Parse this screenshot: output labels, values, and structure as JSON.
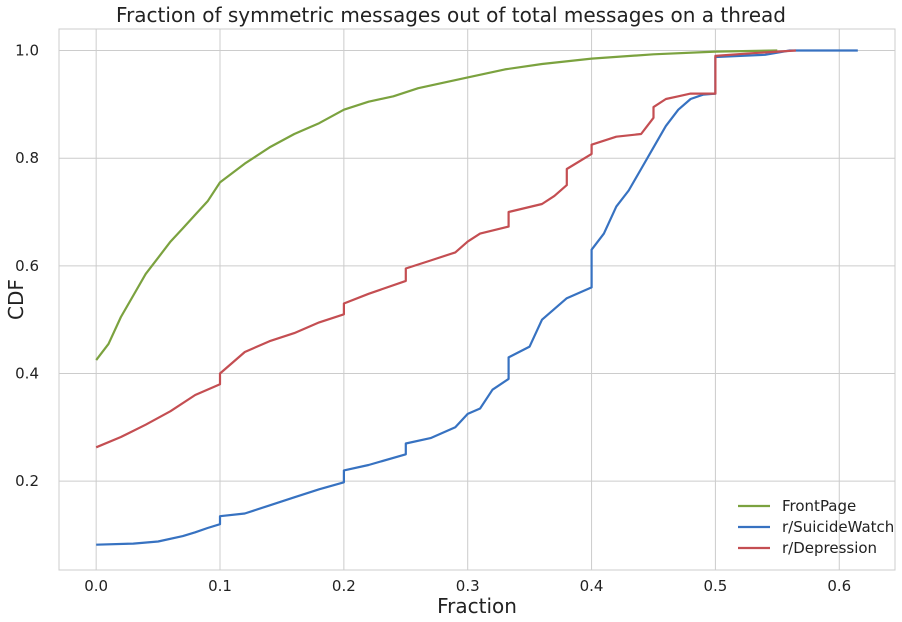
{
  "chart_data": {
    "type": "line",
    "title": "Fraction of symmetric messages out of total messages on a thread",
    "xlabel": "Fraction",
    "ylabel": "CDF",
    "xlim": [
      -0.03,
      0.645
    ],
    "ylim": [
      0.035,
      1.04
    ],
    "xticks": [
      0.0,
      0.1,
      0.2,
      0.3,
      0.4,
      0.5,
      0.6
    ],
    "xtick_labels": [
      "0.0",
      "0.1",
      "0.2",
      "0.3",
      "0.4",
      "0.5",
      "0.6"
    ],
    "yticks": [
      0.2,
      0.4,
      0.6,
      0.8,
      1.0
    ],
    "ytick_labels": [
      "0.2",
      "0.4",
      "0.6",
      "0.8",
      "1.0"
    ],
    "grid": true,
    "legend_position": "bottom-right",
    "series": [
      {
        "name": "FrontPage",
        "color": "#7ba23f",
        "x": [
          0.0,
          0.01,
          0.02,
          0.03,
          0.04,
          0.05,
          0.06,
          0.07,
          0.08,
          0.09,
          0.1,
          0.12,
          0.14,
          0.16,
          0.18,
          0.2,
          0.22,
          0.24,
          0.26,
          0.28,
          0.3,
          0.33,
          0.36,
          0.4,
          0.45,
          0.5,
          0.55
        ],
        "y": [
          0.425,
          0.455,
          0.505,
          0.545,
          0.585,
          0.615,
          0.645,
          0.67,
          0.695,
          0.72,
          0.755,
          0.79,
          0.82,
          0.845,
          0.865,
          0.89,
          0.905,
          0.915,
          0.93,
          0.94,
          0.95,
          0.965,
          0.975,
          0.985,
          0.993,
          0.998,
          1.0
        ]
      },
      {
        "name": "r/SuicideWatch",
        "color": "#3772c1",
        "x": [
          0.0,
          0.03,
          0.05,
          0.07,
          0.08,
          0.09,
          0.1,
          0.1,
          0.12,
          0.14,
          0.16,
          0.18,
          0.2,
          0.2,
          0.22,
          0.25,
          0.25,
          0.27,
          0.29,
          0.3,
          0.31,
          0.32,
          0.333,
          0.333,
          0.35,
          0.36,
          0.37,
          0.38,
          0.4,
          0.4,
          0.41,
          0.42,
          0.43,
          0.44,
          0.45,
          0.46,
          0.47,
          0.48,
          0.49,
          0.5,
          0.5,
          0.54,
          0.56,
          0.615
        ],
        "y": [
          0.082,
          0.084,
          0.088,
          0.098,
          0.105,
          0.113,
          0.12,
          0.135,
          0.14,
          0.155,
          0.17,
          0.185,
          0.198,
          0.22,
          0.23,
          0.25,
          0.27,
          0.28,
          0.3,
          0.325,
          0.335,
          0.37,
          0.39,
          0.43,
          0.45,
          0.5,
          0.52,
          0.54,
          0.56,
          0.63,
          0.66,
          0.71,
          0.74,
          0.78,
          0.82,
          0.86,
          0.89,
          0.91,
          0.918,
          0.92,
          0.988,
          0.992,
          1.0,
          1.0
        ]
      },
      {
        "name": "r/Depression",
        "color": "#c44e52",
        "x": [
          0.0,
          0.02,
          0.04,
          0.06,
          0.08,
          0.1,
          0.1,
          0.12,
          0.14,
          0.16,
          0.18,
          0.2,
          0.2,
          0.22,
          0.25,
          0.25,
          0.27,
          0.29,
          0.3,
          0.31,
          0.333,
          0.333,
          0.36,
          0.37,
          0.38,
          0.38,
          0.4,
          0.4,
          0.42,
          0.44,
          0.45,
          0.45,
          0.46,
          0.47,
          0.48,
          0.5,
          0.5,
          0.53,
          0.565
        ],
        "y": [
          0.263,
          0.282,
          0.305,
          0.33,
          0.36,
          0.38,
          0.4,
          0.44,
          0.46,
          0.475,
          0.495,
          0.51,
          0.53,
          0.548,
          0.572,
          0.595,
          0.61,
          0.625,
          0.645,
          0.66,
          0.673,
          0.7,
          0.715,
          0.73,
          0.75,
          0.78,
          0.808,
          0.825,
          0.84,
          0.845,
          0.875,
          0.895,
          0.91,
          0.915,
          0.92,
          0.92,
          0.99,
          0.995,
          1.0
        ]
      }
    ]
  }
}
